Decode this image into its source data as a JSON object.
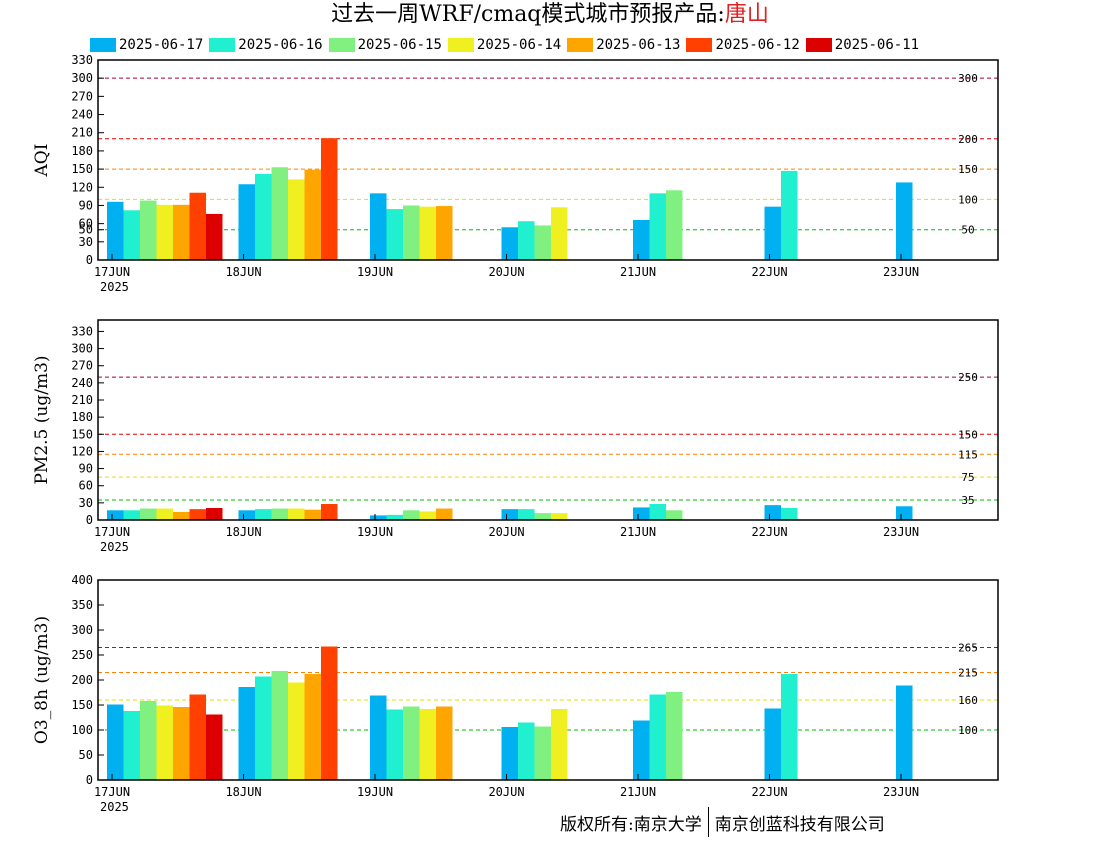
{
  "title": {
    "main": "过去一周WRF/cmaq模式城市预报产品:",
    "city": "唐山"
  },
  "legend": [
    {
      "label": "2025-06-17",
      "color": "#00b0f0"
    },
    {
      "label": "2025-06-16",
      "color": "#20f0d0"
    },
    {
      "label": "2025-06-15",
      "color": "#80f080"
    },
    {
      "label": "2025-06-14",
      "color": "#f0f020"
    },
    {
      "label": "2025-06-13",
      "color": "#ffa500"
    },
    {
      "label": "2025-06-12",
      "color": "#ff4000"
    },
    {
      "label": "2025-06-11",
      "color": "#dd0000"
    }
  ],
  "footer": {
    "left": "版权所有:南京大学",
    "right": "南京创蓝科技有限公司"
  },
  "chart_data": [
    {
      "type": "bar",
      "ylabel": "AQI",
      "ylim": [
        0,
        330
      ],
      "yticks": [
        0,
        30,
        50,
        60,
        90,
        120,
        150,
        180,
        210,
        240,
        270,
        300,
        330
      ],
      "categories": [
        "17JUN",
        "18JUN",
        "19JUN",
        "20JUN",
        "21JUN",
        "22JUN",
        "23JUN"
      ],
      "year_label": "2025",
      "thresholds": [
        {
          "value": 300,
          "label": "300",
          "color": "#a00040"
        },
        {
          "value": 200,
          "label": "200",
          "color": "#dd0000"
        },
        {
          "value": 150,
          "label": "150",
          "color": "#ff8000"
        },
        {
          "value": 100,
          "label": "100",
          "color": "#e0e000"
        },
        {
          "value": 50,
          "label": "50",
          "color": "#00c000"
        }
      ],
      "series": [
        {
          "name": "2025-06-17",
          "values": [
            96,
            125,
            110,
            54,
            66,
            88,
            128
          ]
        },
        {
          "name": "2025-06-16",
          "values": [
            82,
            142,
            84,
            64,
            110,
            147,
            null
          ]
        },
        {
          "name": "2025-06-15",
          "values": [
            98,
            153,
            90,
            57,
            115,
            null,
            null
          ]
        },
        {
          "name": "2025-06-14",
          "values": [
            91,
            133,
            88,
            87,
            null,
            null,
            null
          ]
        },
        {
          "name": "2025-06-13",
          "values": [
            91,
            149,
            89,
            null,
            null,
            null,
            null
          ]
        },
        {
          "name": "2025-06-12",
          "values": [
            111,
            201,
            null,
            null,
            null,
            null,
            null
          ]
        },
        {
          "name": "2025-06-11",
          "values": [
            76,
            null,
            null,
            null,
            null,
            null,
            null
          ]
        }
      ]
    },
    {
      "type": "bar",
      "ylabel": "PM2.5 (ug/m3)",
      "ylim": [
        0,
        350
      ],
      "yticks": [
        0,
        30,
        60,
        90,
        120,
        150,
        180,
        210,
        240,
        270,
        300,
        330
      ],
      "categories": [
        "17JUN",
        "18JUN",
        "19JUN",
        "20JUN",
        "21JUN",
        "22JUN",
        "23JUN"
      ],
      "year_label": "2025",
      "thresholds": [
        {
          "value": 250,
          "label": "250",
          "color": "#a00040"
        },
        {
          "value": 150,
          "label": "150",
          "color": "#dd0000"
        },
        {
          "value": 115,
          "label": "115",
          "color": "#ff8000"
        },
        {
          "value": 75,
          "label": "75",
          "color": "#e0e000"
        },
        {
          "value": 35,
          "label": "35",
          "color": "#00c000"
        }
      ],
      "series": [
        {
          "name": "2025-06-17",
          "values": [
            17,
            17,
            8,
            19,
            22,
            26,
            24
          ]
        },
        {
          "name": "2025-06-16",
          "values": [
            17,
            19,
            9,
            19,
            28,
            21,
            null
          ]
        },
        {
          "name": "2025-06-15",
          "values": [
            20,
            20,
            17,
            12,
            17,
            null,
            null
          ]
        },
        {
          "name": "2025-06-14",
          "values": [
            20,
            20,
            15,
            12,
            null,
            null,
            null
          ]
        },
        {
          "name": "2025-06-13",
          "values": [
            14,
            18,
            20,
            null,
            null,
            null,
            null
          ]
        },
        {
          "name": "2025-06-12",
          "values": [
            19,
            28,
            null,
            null,
            null,
            null,
            null
          ]
        },
        {
          "name": "2025-06-11",
          "values": [
            21,
            null,
            null,
            null,
            null,
            null,
            null
          ]
        }
      ]
    },
    {
      "type": "bar",
      "ylabel": "O3_8h (ug/m3)",
      "ylim": [
        0,
        400
      ],
      "yticks": [
        0,
        50,
        100,
        150,
        200,
        250,
        300,
        350,
        400
      ],
      "categories": [
        "17JUN",
        "18JUN",
        "19JUN",
        "20JUN",
        "21JUN",
        "22JUN",
        "23JUN"
      ],
      "year_label": "2025",
      "thresholds": [
        {
          "value": 265,
          "label": "265",
          "color": "#dd0000"
        },
        {
          "value": 215,
          "label": "215",
          "color": "#ff8000"
        },
        {
          "value": 160,
          "label": "160",
          "color": "#e0e000"
        },
        {
          "value": 100,
          "label": "100",
          "color": "#00c000"
        }
      ],
      "series": [
        {
          "name": "2025-06-17",
          "values": [
            151,
            186,
            169,
            106,
            119,
            143,
            189
          ]
        },
        {
          "name": "2025-06-16",
          "values": [
            138,
            207,
            141,
            115,
            171,
            212,
            null
          ]
        },
        {
          "name": "2025-06-15",
          "values": [
            158,
            218,
            147,
            107,
            176,
            null,
            null
          ]
        },
        {
          "name": "2025-06-14",
          "values": [
            149,
            195,
            142,
            142,
            null,
            null,
            null
          ]
        },
        {
          "name": "2025-06-13",
          "values": [
            146,
            212,
            147,
            null,
            null,
            null,
            null
          ]
        },
        {
          "name": "2025-06-12",
          "values": [
            171,
            267,
            null,
            null,
            null,
            null,
            null
          ]
        },
        {
          "name": "2025-06-11",
          "values": [
            131,
            null,
            null,
            null,
            null,
            null,
            null
          ]
        }
      ]
    }
  ]
}
